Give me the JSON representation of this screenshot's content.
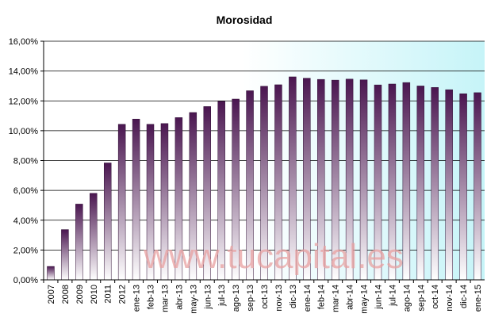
{
  "chart_data": {
    "type": "bar",
    "title": "Morosidad",
    "xlabel": "",
    "ylabel": "",
    "ylim": [
      0,
      16
    ],
    "y_ticks": [
      "0,00%",
      "2,00%",
      "4,00%",
      "6,00%",
      "8,00%",
      "10,00%",
      "12,00%",
      "14,00%",
      "16,00%"
    ],
    "grid": true,
    "legend": "none",
    "categories": [
      "2007",
      "2008",
      "2009",
      "2010",
      "2011",
      "2012",
      "ene-13",
      "feb-13",
      "mar-13",
      "abr-13",
      "may-13",
      "jun-13",
      "jul-13",
      "ago-13",
      "sep-13",
      "oct-13",
      "nov-13",
      "dic-13",
      "ene-14",
      "feb-14",
      "mar-14",
      "abr-14",
      "may-14",
      "jun-14",
      "jul-14",
      "ago-14",
      "sep-14",
      "oct-14",
      "nov-14",
      "dic-14",
      "ene-15"
    ],
    "values": [
      0.9,
      3.37,
      5.08,
      5.8,
      7.84,
      10.43,
      10.78,
      10.43,
      10.48,
      10.88,
      11.22,
      11.62,
      11.97,
      12.12,
      12.68,
      12.98,
      13.08,
      13.61,
      13.52,
      13.44,
      13.39,
      13.46,
      13.41,
      13.07,
      13.13,
      13.23,
      13.0,
      12.9,
      12.75,
      12.48,
      12.55
    ],
    "colors": {
      "bar_top": "#4a1650",
      "bar_bottom": "#ffffff",
      "bg_left": "#ffffff",
      "bg_right": "#c6f4f8"
    }
  },
  "watermark": "www.tucapital.es"
}
